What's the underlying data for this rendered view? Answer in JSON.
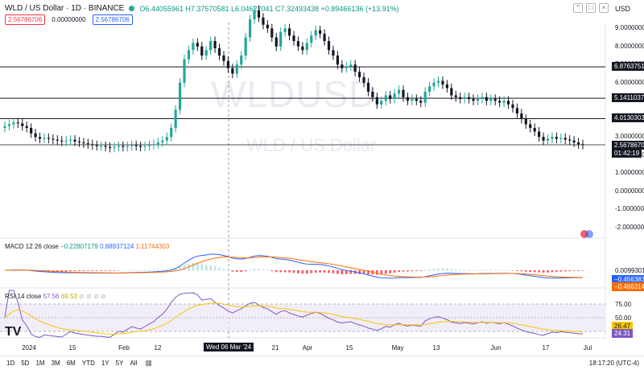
{
  "header": {
    "title": "WLD / US Dollar · 1D · BINANCE",
    "ohlc": "O6.44055961 H7.37570581 L6.04627041 C7.32493438 +0.89466136 (+13.91%)",
    "sell_price": "2.56786706",
    "spread": "0.00000000",
    "buy_price": "2.56786706",
    "currency": "USD"
  },
  "watermark": {
    "symbol": "WLDUSD",
    "name": "WLD / US Dollar"
  },
  "price_axis": [
    {
      "label": "9.00000000",
      "v": 9
    },
    {
      "label": "8.00000000",
      "v": 8
    },
    {
      "label": "7.00000000",
      "v": 7
    },
    {
      "label": "6.00000000",
      "v": 6
    },
    {
      "label": "3.00000000",
      "v": 3
    },
    {
      "label": "2.00000000",
      "v": 2
    },
    {
      "label": "1.00000000",
      "v": 1
    },
    {
      "label": "0.00000000",
      "v": 0
    },
    {
      "label": "-1.00000000",
      "v": -1
    },
    {
      "label": "-2.00000000",
      "v": -2
    }
  ],
  "price_tags": [
    {
      "label": "6.87637518",
      "v": 6.876
    },
    {
      "label": "5.14110376",
      "v": 5.141
    },
    {
      "label": "4.01303038",
      "v": 4.013
    }
  ],
  "last_price": {
    "label": "2.56786706",
    "timer": "01:42:19",
    "v": 2.568
  },
  "macd": {
    "label": "MACD 12 26 close",
    "hist": "−0.22807179",
    "macd": "0.88937124",
    "signal": "1.11744303",
    "axis": [
      {
        "label": "0.00993012"
      }
    ],
    "tags": [
      {
        "label": "−0.45638392"
      },
      {
        "label": "−0.46631405"
      }
    ]
  },
  "rsi": {
    "label": "RSI 14 close",
    "value": "57.56",
    "ma": "69.53",
    "axis": [
      {
        "label": "75.00",
        "v": 75
      },
      {
        "label": "50.00",
        "v": 50
      }
    ],
    "tags": [
      {
        "label": "26.47",
        "v": 26.47
      },
      {
        "label": "24.31",
        "v": 24.31
      }
    ]
  },
  "time_axis": [
    {
      "label": "2024",
      "x": 36
    },
    {
      "label": "15",
      "x": 90
    },
    {
      "label": "Feb",
      "x": 154
    },
    {
      "label": "12",
      "x": 196
    },
    {
      "label": "Wed 06 Mar '24",
      "x": 284,
      "highlight": true
    },
    {
      "label": "21",
      "x": 342
    },
    {
      "label": "Apr",
      "x": 382
    },
    {
      "label": "15",
      "x": 434
    },
    {
      "label": "May",
      "x": 494
    },
    {
      "label": "13",
      "x": 542
    },
    {
      "label": "Jun",
      "x": 616
    },
    {
      "label": "17",
      "x": 678
    },
    {
      "label": "Jul",
      "x": 730
    }
  ],
  "timeframes": [
    "1D",
    "5D",
    "1M",
    "3M",
    "6M",
    "YTD",
    "1Y",
    "5Y",
    "All"
  ],
  "clock": "18:17:20 (UTC-4)",
  "colors": {
    "up": "#26a69a",
    "down": "#131722",
    "macd": "#2962ff",
    "signal": "#ff6d00",
    "rsi": "#7e57c2",
    "rsi_ma": "#f7c600"
  },
  "chart_data": {
    "type": "candlestick",
    "symbol": "WLD / US Dollar",
    "interval": "1D",
    "ylim": [
      -2,
      10
    ],
    "closes": [
      3.6,
      3.7,
      3.8,
      3.75,
      3.6,
      3.5,
      3.2,
      3.0,
      2.9,
      2.95,
      2.9,
      2.85,
      2.8,
      2.75,
      2.8,
      2.85,
      2.75,
      2.7,
      2.65,
      2.6,
      2.55,
      2.5,
      2.5,
      2.45,
      2.4,
      2.45,
      2.5,
      2.45,
      2.5,
      2.55,
      2.5,
      2.45,
      2.5,
      2.55,
      2.6,
      2.7,
      2.8,
      3.0,
      3.5,
      4.5,
      6.0,
      7.3,
      7.8,
      8.2,
      8.0,
      7.5,
      7.8,
      8.3,
      7.9,
      7.5,
      7.2,
      6.8,
      6.5,
      7.0,
      7.5,
      8.5,
      9.5,
      10.0,
      9.6,
      9.2,
      9.0,
      8.5,
      8.0,
      8.8,
      9.0,
      8.6,
      8.3,
      8.0,
      7.8,
      8.2,
      8.6,
      8.9,
      8.7,
      8.3,
      7.8,
      7.5,
      7.0,
      6.8,
      6.9,
      7.0,
      6.6,
      6.3,
      6.0,
      5.5,
      5.2,
      4.8,
      5.0,
      5.3,
      5.1,
      5.4,
      5.6,
      5.2,
      5.0,
      5.1,
      5.0,
      4.9,
      5.5,
      5.8,
      6.0,
      6.1,
      5.9,
      5.7,
      5.3,
      5.2,
      5.1,
      5.2,
      5.1,
      5.0,
      5.1,
      5.2,
      5.0,
      5.1,
      5.0,
      4.9,
      5.0,
      4.8,
      4.6,
      4.3,
      4.0,
      3.7,
      3.5,
      3.3,
      3.0,
      2.8,
      2.9,
      3.0,
      2.9,
      2.95,
      2.85,
      2.8,
      2.7,
      2.6,
      2.57
    ],
    "macd_line": [],
    "rsi_note": "RSI 14 close 57.56 MA 69.53"
  }
}
